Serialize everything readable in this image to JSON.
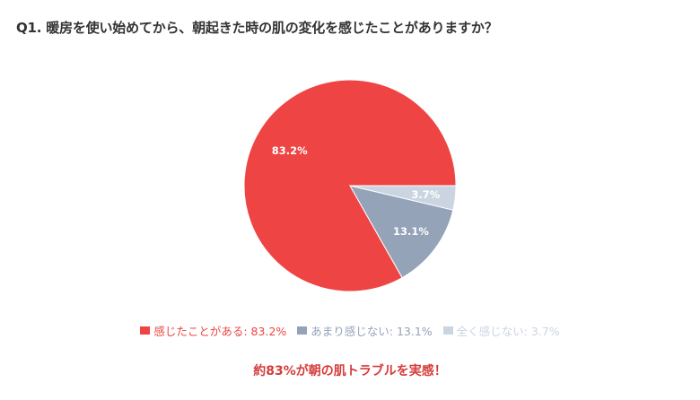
{
  "chart_data": {
    "type": "pie",
    "title": "Q1. 暖房を使い始めてから、朝起きた時の肌の変化を感じたことがありますか？",
    "slices": [
      {
        "label": "感じたことがある",
        "value": 83.2,
        "data_label": "83.2%",
        "legend_label": "感じたことがある: 83.2%",
        "color": "#ef4444"
      },
      {
        "label": "あまり感じない",
        "value": 13.1,
        "data_label": "13.1%",
        "legend_label": "あまり感じない: 13.1%",
        "color": "#94a3b8"
      },
      {
        "label": "全く感じない",
        "value": 3.7,
        "data_label": "3.7%",
        "legend_label": "全く感じない: 3.7%",
        "color": "#cbd5e1"
      }
    ],
    "legend_position": "bottom",
    "annotation": "約83%が朝の肌トラブルを実感！"
  }
}
